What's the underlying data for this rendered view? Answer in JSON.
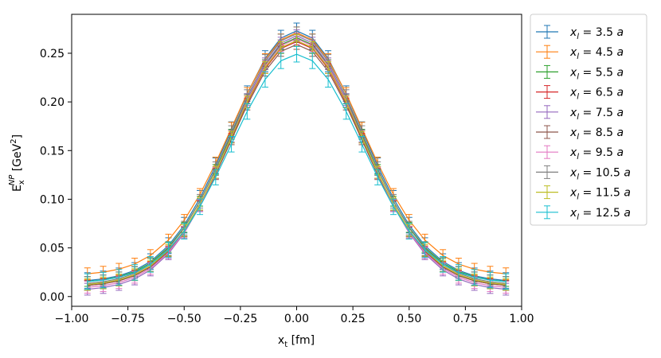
{
  "chart_data": {
    "type": "line",
    "xlabel": "x_t [fm]",
    "ylabel": "E_x^NP [GeV^2]",
    "xlim": [
      -1.0,
      1.0
    ],
    "ylim": [
      -0.01,
      0.29
    ],
    "xticks": [
      -1.0,
      -0.75,
      -0.5,
      -0.25,
      0.0,
      0.25,
      0.5,
      0.75,
      1.0
    ],
    "xtick_labels": [
      "−1.00",
      "−0.75",
      "−0.50",
      "−0.25",
      "0.00",
      "0.25",
      "0.50",
      "0.75",
      "1.00"
    ],
    "yticks": [
      0.0,
      0.05,
      0.1,
      0.15,
      0.2,
      0.25
    ],
    "ytick_labels": [
      "0.00",
      "0.05",
      "0.10",
      "0.15",
      "0.20",
      "0.25"
    ],
    "grid": false,
    "legend_position": "outside-right",
    "x": [
      -0.93,
      -0.86,
      -0.79,
      -0.72,
      -0.65,
      -0.57,
      -0.5,
      -0.43,
      -0.36,
      -0.29,
      -0.22,
      -0.14,
      -0.07,
      0.0,
      0.07,
      0.14,
      0.22,
      0.29,
      0.36,
      0.43,
      0.5,
      0.57,
      0.65,
      0.72,
      0.79,
      0.86,
      0.93
    ],
    "series": [
      {
        "name": "x_l = 3.5 a",
        "color": "#1f77b4",
        "peak": 0.273,
        "edge": 0.015,
        "yerr": 0.008
      },
      {
        "name": "x_l = 4.5 a",
        "color": "#ff7f0e",
        "peak": 0.271,
        "edge": 0.022,
        "yerr": 0.006
      },
      {
        "name": "x_l = 5.5 a",
        "color": "#2ca02c",
        "peak": 0.266,
        "edge": 0.014,
        "yerr": 0.005
      },
      {
        "name": "x_l = 6.5 a",
        "color": "#d62728",
        "peak": 0.262,
        "edge": 0.01,
        "yerr": 0.005
      },
      {
        "name": "x_l = 7.5 a",
        "color": "#9467bd",
        "peak": 0.268,
        "edge": 0.006,
        "yerr": 0.006
      },
      {
        "name": "x_l = 8.5 a",
        "color": "#8c564b",
        "peak": 0.259,
        "edge": 0.01,
        "yerr": 0.005
      },
      {
        "name": "x_l = 9.5 a",
        "color": "#e377c2",
        "peak": 0.265,
        "edge": 0.008,
        "yerr": 0.006
      },
      {
        "name": "x_l = 10.5 a",
        "color": "#7f7f7f",
        "peak": 0.27,
        "edge": 0.012,
        "yerr": 0.007
      },
      {
        "name": "x_l = 11.5 a",
        "color": "#bcbd22",
        "peak": 0.263,
        "edge": 0.011,
        "yerr": 0.006
      },
      {
        "name": "x_l = 12.5 a",
        "color": "#17becf",
        "peak": 0.249,
        "edge": 0.014,
        "yerr": 0.008
      }
    ]
  }
}
